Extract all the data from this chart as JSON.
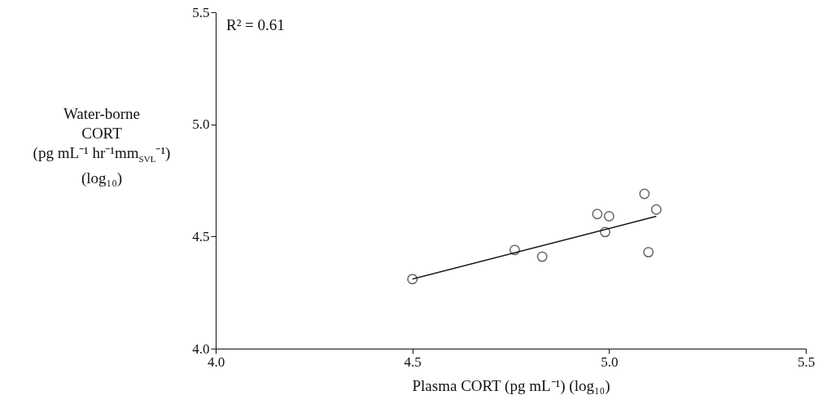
{
  "chart_data": {
    "type": "scatter",
    "xlabel": "Plasma CORT (pg mL⁻¹) (log₁₀)",
    "ylabel": "Water-borne\nCORT\n(pg mL⁻¹ hr⁻¹mm$_{SVL}$⁻¹)\n(log₁₀)",
    "annotations": [
      "R² = 0.61"
    ],
    "xlim": [
      4.0,
      5.5
    ],
    "xticks": [
      {
        "value": 4.0,
        "label": "4.0"
      },
      {
        "value": 4.5,
        "label": "4.5"
      },
      {
        "value": 5.0,
        "label": "5.0"
      },
      {
        "value": 5.5,
        "label": "5.5"
      }
    ],
    "ylim": [
      4.0,
      5.5
    ],
    "yticks": [
      {
        "value": 4.0,
        "label": "4.0"
      },
      {
        "value": 4.5,
        "label": "4.5"
      },
      {
        "value": 5.0,
        "label": "5.0"
      },
      {
        "value": 5.5,
        "label": "5.5"
      }
    ],
    "grid": false,
    "series": [
      {
        "marker": "circle",
        "color": "#666666",
        "x": [
          4.5,
          4.76,
          4.83,
          4.97,
          5.0,
          4.99,
          5.09,
          5.12,
          5.1
        ],
        "values": [
          4.31,
          4.44,
          4.41,
          4.6,
          4.59,
          4.52,
          4.69,
          4.62,
          4.43
        ]
      },
      {
        "type": "line",
        "color": "#111111",
        "line_style": "solid",
        "x": [
          4.5,
          5.12
        ],
        "values": [
          4.31,
          4.59
        ]
      }
    ]
  }
}
